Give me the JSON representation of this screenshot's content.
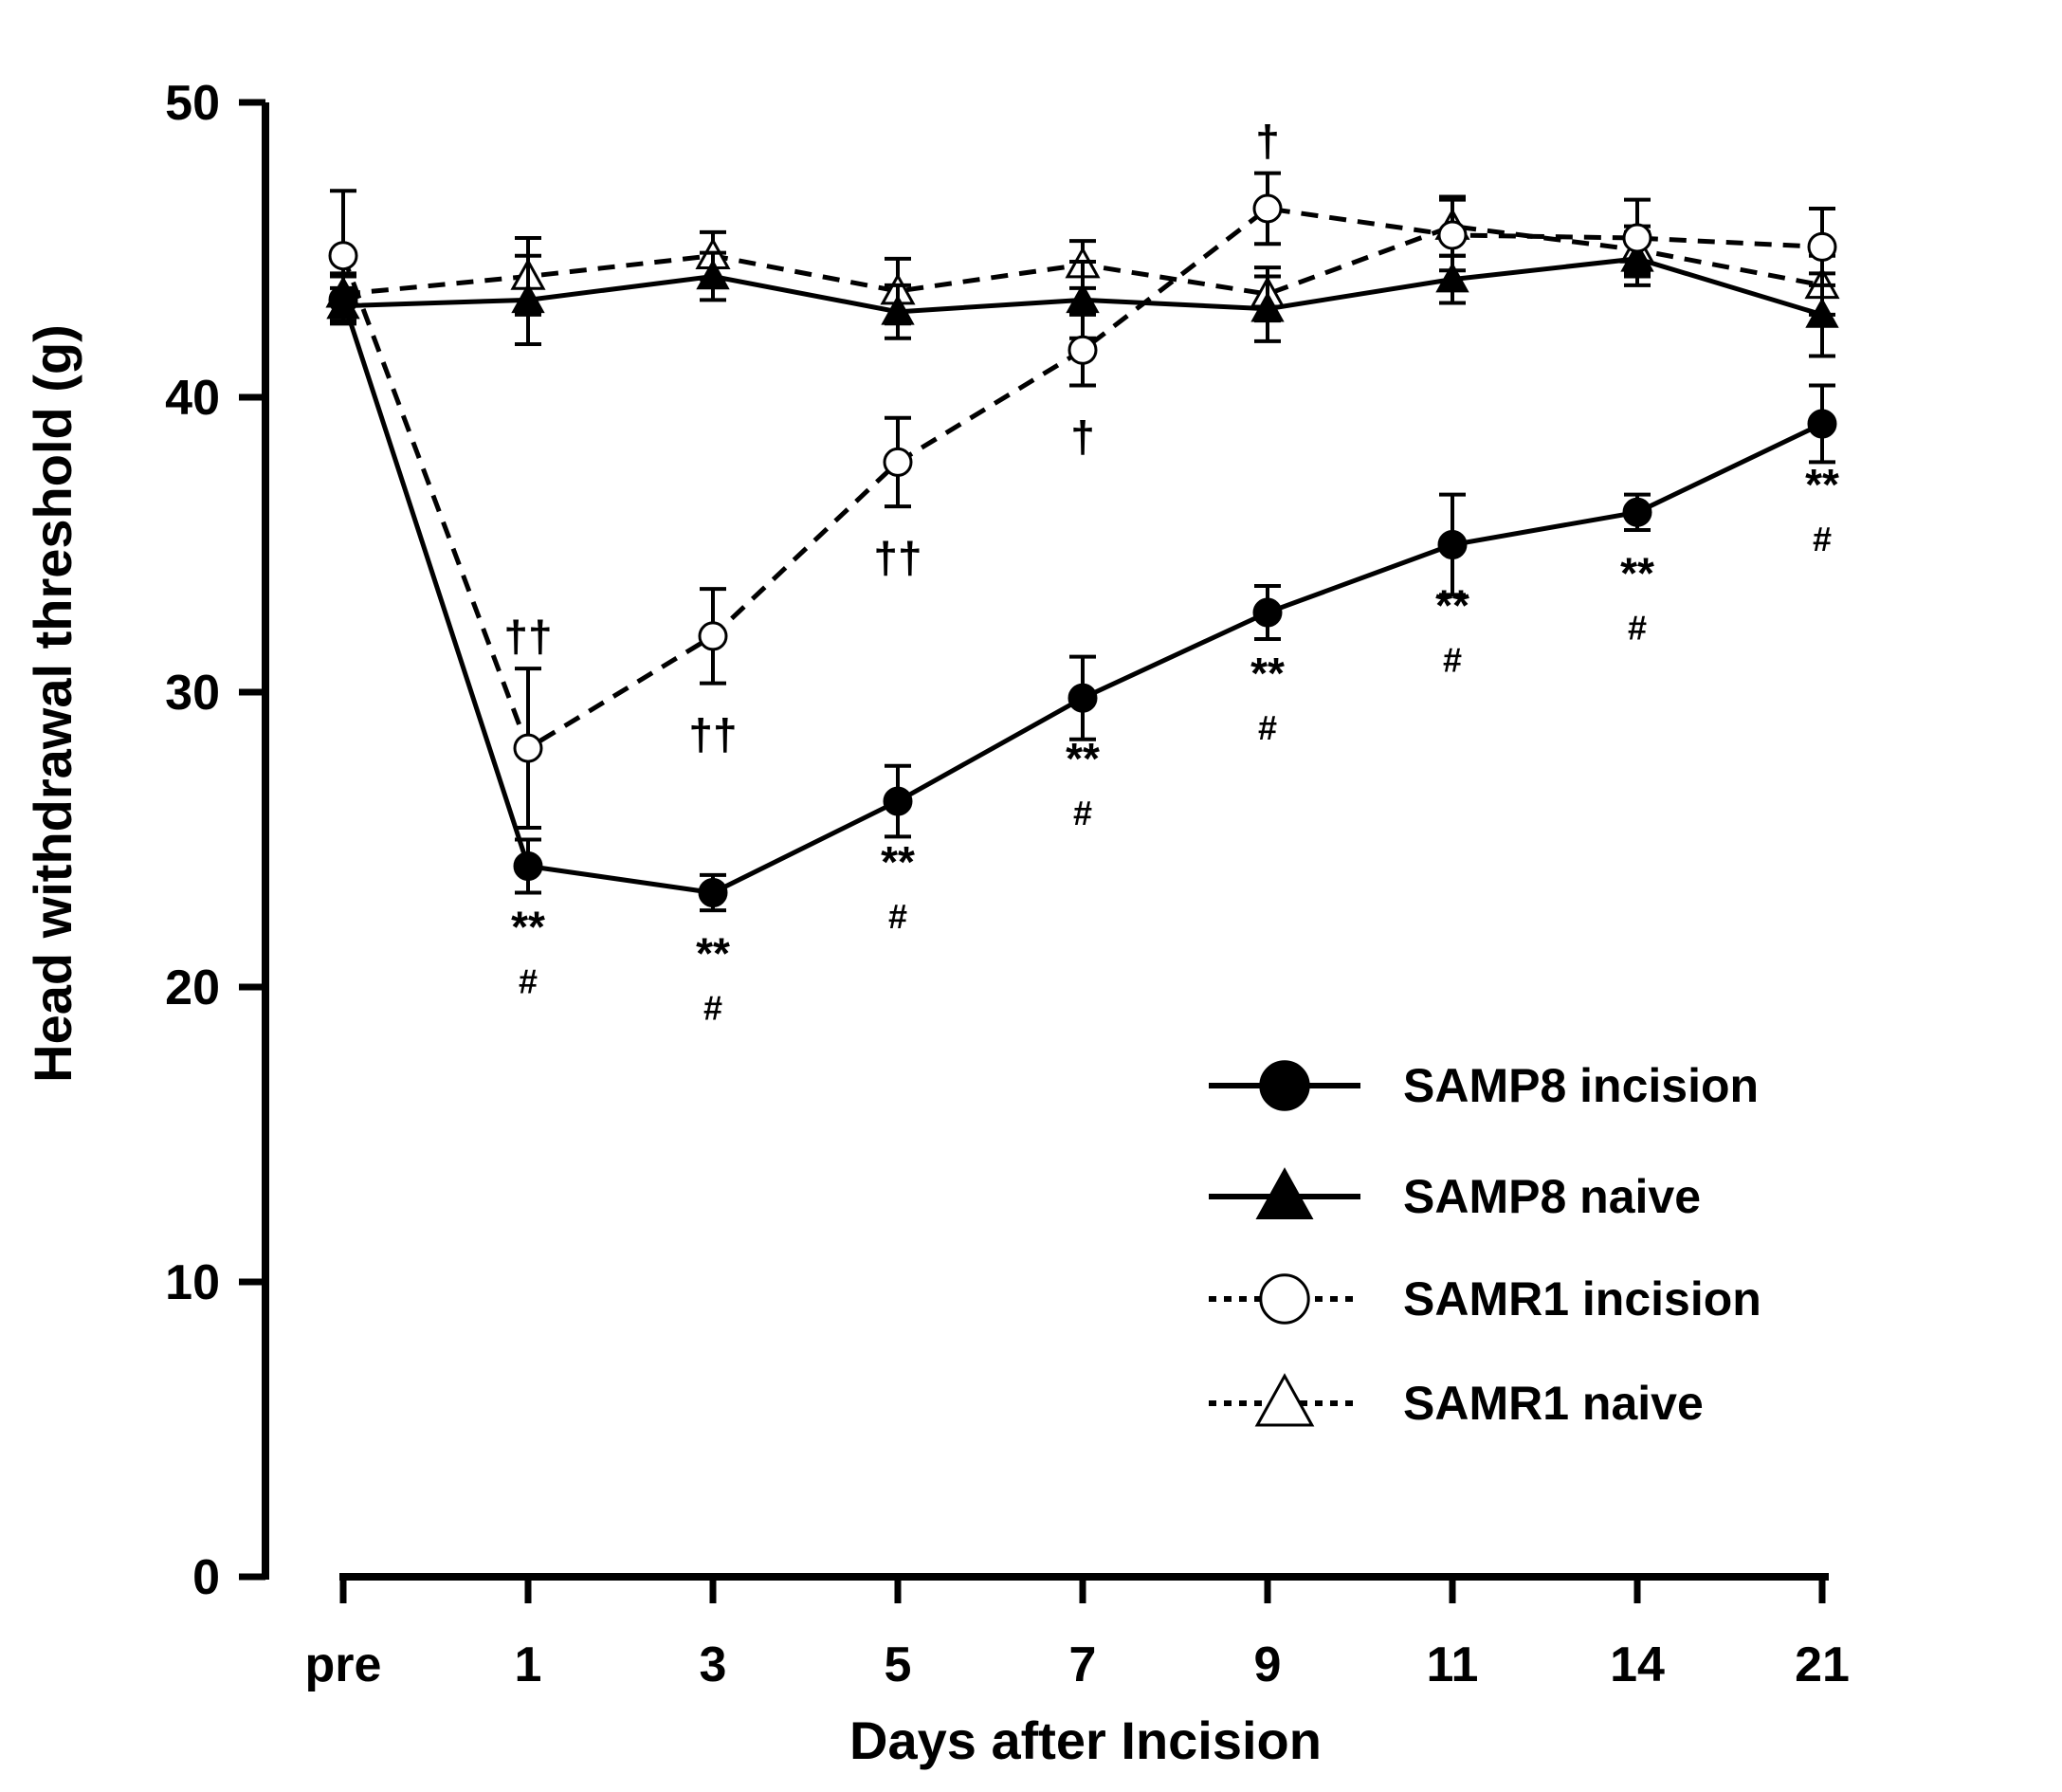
{
  "chart_data": {
    "type": "line",
    "title": "",
    "xlabel": "Days after Incision",
    "ylabel": "Head withdrawal threshold (g)",
    "categories": [
      "pre",
      "1",
      "3",
      "5",
      "7",
      "9",
      "11",
      "14",
      "21"
    ],
    "ylim": [
      0,
      50
    ],
    "yticks": [
      0,
      10,
      20,
      30,
      40,
      50
    ],
    "grid": false,
    "legend_position": "bottom-right",
    "series": [
      {
        "name": "SAMP8 incision",
        "marker": "filled-circle",
        "line": "solid",
        "values": [
          43.3,
          24.1,
          23.2,
          26.3,
          29.8,
          32.7,
          35.0,
          36.1,
          39.1
        ],
        "errors": [
          0.8,
          0.9,
          0.6,
          1.2,
          1.4,
          0.9,
          1.7,
          0.6,
          1.3
        ]
      },
      {
        "name": "SAMP8 naive",
        "marker": "filled-triangle",
        "line": "solid",
        "values": [
          43.1,
          43.3,
          44.1,
          42.9,
          43.3,
          43.0,
          44.0,
          44.7,
          42.8
        ],
        "errors": [
          0.6,
          1.5,
          0.8,
          0.9,
          1.3,
          1.1,
          0.8,
          0.9,
          1.4
        ]
      },
      {
        "name": "SAMR1 incision",
        "marker": "open-circle",
        "line": "dashed",
        "values": [
          44.8,
          28.1,
          31.9,
          37.8,
          41.6,
          46.4,
          45.5,
          45.4,
          45.1
        ],
        "errors": [
          2.2,
          2.7,
          1.6,
          1.5,
          1.2,
          1.2,
          1.2,
          1.3,
          1.3
        ]
      },
      {
        "name": "SAMR1 naive",
        "marker": "open-triangle",
        "line": "dashed",
        "values": [
          43.5,
          44.1,
          44.8,
          43.6,
          44.5,
          43.5,
          45.8,
          45.0,
          43.8
        ],
        "errors": [
          0.7,
          1.3,
          0.8,
          1.1,
          0.8,
          0.9,
          1.0,
          0.8,
          1.0
        ]
      }
    ],
    "annotations": [
      {
        "category": "1",
        "lines": [
          "**",
          "#"
        ],
        "anchor_value": 24.1,
        "position": "below"
      },
      {
        "category": "3",
        "lines": [
          "**",
          "#"
        ],
        "anchor_value": 23.2,
        "position": "below"
      },
      {
        "category": "5",
        "lines": [
          "**",
          "#"
        ],
        "anchor_value": 26.3,
        "position": "below"
      },
      {
        "category": "7",
        "lines": [
          "**",
          "#"
        ],
        "anchor_value": 29.8,
        "position": "below"
      },
      {
        "category": "9",
        "lines": [
          "**",
          "#"
        ],
        "anchor_value": 32.7,
        "position": "below"
      },
      {
        "category": "11",
        "lines": [
          "**",
          "#"
        ],
        "anchor_value": 35.0,
        "position": "below"
      },
      {
        "category": "14",
        "lines": [
          "**",
          "#"
        ],
        "anchor_value": 36.1,
        "position": "below"
      },
      {
        "category": "21",
        "lines": [
          "**",
          "#"
        ],
        "anchor_value": 39.1,
        "position": "below"
      },
      {
        "category": "1",
        "lines": [
          "††"
        ],
        "anchor_value": 30.8,
        "position": "above"
      },
      {
        "category": "3",
        "lines": [
          "††"
        ],
        "anchor_value": 30.3,
        "position": "below"
      },
      {
        "category": "5",
        "lines": [
          "††"
        ],
        "anchor_value": 36.3,
        "position": "below"
      },
      {
        "category": "7",
        "lines": [
          "†"
        ],
        "anchor_value": 40.4,
        "position": "below"
      },
      {
        "category": "9",
        "lines": [
          "†"
        ],
        "anchor_value": 47.6,
        "position": "above"
      }
    ]
  }
}
